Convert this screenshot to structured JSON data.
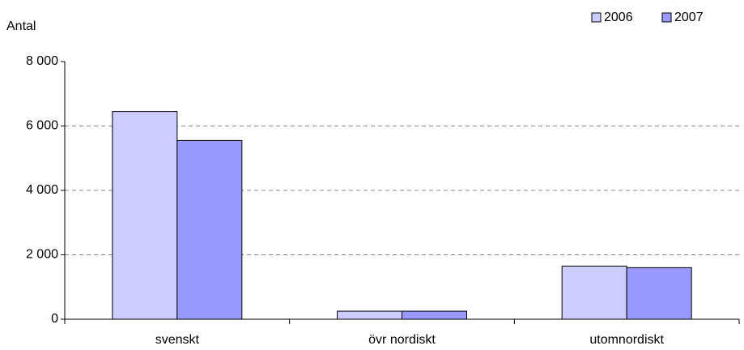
{
  "chart_data": {
    "type": "bar",
    "y_label": "Antal",
    "categories": [
      "svenskt",
      "övr nordiskt",
      "utomnordiskt"
    ],
    "series": [
      {
        "name": "2006",
        "color": "#ccccff",
        "values": [
          6450,
          250,
          1650
        ]
      },
      {
        "name": "2007",
        "color": "#9999ff",
        "values": [
          5550,
          250,
          1600
        ]
      }
    ],
    "ylim": [
      0,
      8000
    ],
    "yticks": [
      0,
      {
        "value": 2000,
        "label": "2 000"
      },
      {
        "value": 4000,
        "label": "4 000"
      },
      {
        "value": 6000,
        "label": "6 000"
      },
      {
        "value": 8000,
        "label": "8 000"
      }
    ],
    "grid": true,
    "legend": "top-right"
  }
}
